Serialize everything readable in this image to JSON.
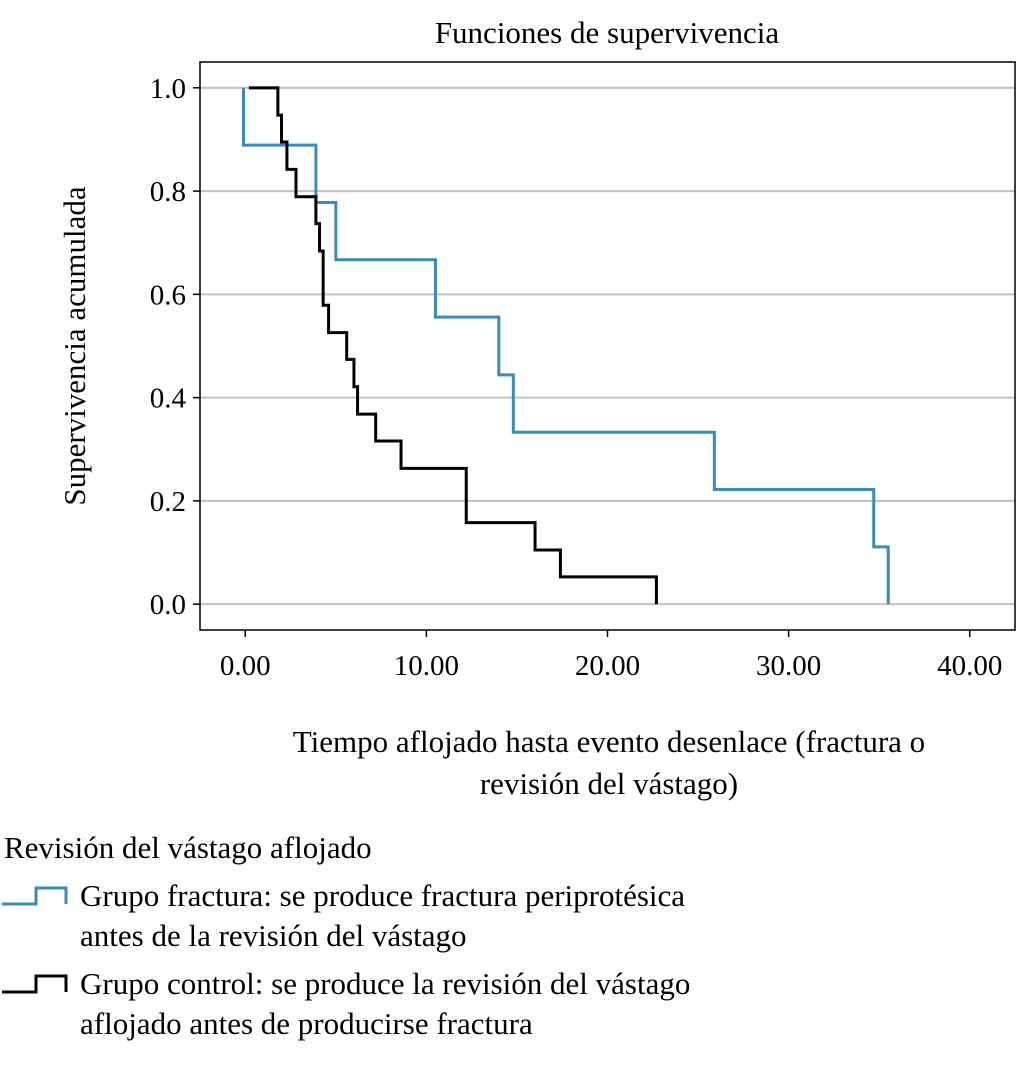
{
  "chart_data": {
    "type": "line",
    "step": true,
    "title": "Funciones de supervivencia",
    "xlabel": "Tiempo aflojado hasta evento desenlace  (fracturа o revisión del vástago)",
    "xlabel_lines": [
      "Tiempo aflojado hasta evento desenlace  (fractura o",
      "revisión del vástago)"
    ],
    "ylabel": "Supervivencia acumulada",
    "xlim": [
      -2.5,
      42.5
    ],
    "ylim": [
      -0.05,
      1.05
    ],
    "xticks": [
      0,
      10,
      20,
      30,
      40
    ],
    "xtick_labels": [
      "0.00",
      "10.00",
      "20.00",
      "30.00",
      "40.00"
    ],
    "yticks": [
      0,
      0.2,
      0.4,
      0.6,
      0.8,
      1.0
    ],
    "ytick_labels": [
      "0.0",
      "0.2",
      "0.4",
      "0.6",
      "0.8",
      "1.0"
    ],
    "grid": "horizontal",
    "legend_title": "Revisión del vástago aflojado",
    "legend_placement": "bottom-left",
    "series": [
      {
        "name": "Grupo fractura: se produce fractura periprotésica antes de la revisión del vástago",
        "name_lines": [
          "Grupo fractura: se produce fractura periprotésica",
          "antes de la revisión del vástago"
        ],
        "color": "#3d8ab5",
        "x": [
          -0.1,
          -0.1,
          3.9,
          5.0,
          10.5,
          14.0,
          14.8,
          25.9,
          34.7,
          35.5
        ],
        "y": [
          1.0,
          0.889,
          0.778,
          0.667,
          0.556,
          0.444,
          0.333,
          0.222,
          0.111,
          0.0
        ]
      },
      {
        "name": "Grupo control: se produce la revisión del vástago aflojado antes de producirse fractura",
        "name_lines": [
          "Grupo control: se produce la revisión del vástago",
          "aflojado antes de producirse fractura"
        ],
        "color": "#000000",
        "x": [
          0.2,
          1.8,
          2.0,
          2.3,
          2.8,
          3.9,
          4.1,
          4.3,
          4.6,
          5.6,
          6.0,
          6.2,
          7.2,
          8.6,
          12.2,
          16.0,
          17.4,
          22.7
        ],
        "y": [
          1.0,
          0.947,
          0.895,
          0.842,
          0.789,
          0.737,
          0.684,
          0.579,
          0.526,
          0.474,
          0.421,
          0.368,
          0.316,
          0.263,
          0.158,
          0.105,
          0.053,
          0.0
        ]
      }
    ]
  }
}
